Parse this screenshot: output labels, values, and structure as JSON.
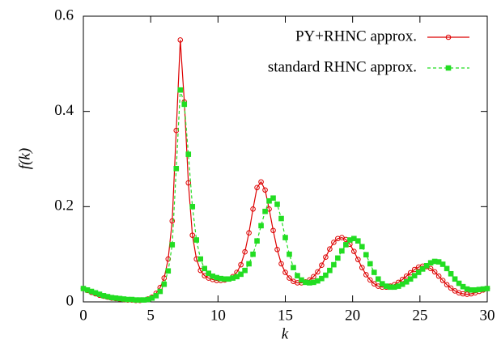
{
  "chart_data": {
    "type": "line",
    "x_label": "k",
    "y_label": "f(k)",
    "x": [
      0,
      0.3,
      0.6,
      0.9,
      1.2,
      1.5,
      1.8,
      2.1,
      2.4,
      2.7,
      3.0,
      3.3,
      3.6,
      3.9,
      4.2,
      4.5,
      4.8,
      5.1,
      5.4,
      5.7,
      6.0,
      6.3,
      6.6,
      6.9,
      7.2,
      7.5,
      7.8,
      8.1,
      8.4,
      8.7,
      9.0,
      9.3,
      9.6,
      9.9,
      10.2,
      10.5,
      10.8,
      11.1,
      11.4,
      11.7,
      12.0,
      12.3,
      12.6,
      12.9,
      13.2,
      13.5,
      13.8,
      14.1,
      14.4,
      14.7,
      15.0,
      15.3,
      15.6,
      15.9,
      16.2,
      16.5,
      16.8,
      17.1,
      17.4,
      17.7,
      18.0,
      18.3,
      18.6,
      18.9,
      19.2,
      19.5,
      19.8,
      20.1,
      20.4,
      20.7,
      21.0,
      21.3,
      21.6,
      21.9,
      22.2,
      22.5,
      22.8,
      23.1,
      23.4,
      23.7,
      24.0,
      24.3,
      24.6,
      24.9,
      25.2,
      25.5,
      25.8,
      26.1,
      26.4,
      26.7,
      27.0,
      27.3,
      27.6,
      27.9,
      28.2,
      28.5,
      28.8,
      29.1,
      29.4,
      29.7,
      30.0
    ],
    "series": [
      {
        "name": "PY+RHNC approx.",
        "color": "#dd0000",
        "marker": "circle",
        "dash": false,
        "values": [
          0.028,
          0.024,
          0.02,
          0.017,
          0.014,
          0.012,
          0.01,
          0.008,
          0.007,
          0.006,
          0.005,
          0.004,
          0.004,
          0.003,
          0.003,
          0.004,
          0.006,
          0.01,
          0.018,
          0.03,
          0.05,
          0.09,
          0.17,
          0.36,
          0.55,
          0.42,
          0.25,
          0.14,
          0.09,
          0.066,
          0.055,
          0.05,
          0.047,
          0.045,
          0.045,
          0.046,
          0.048,
          0.053,
          0.062,
          0.078,
          0.105,
          0.145,
          0.195,
          0.24,
          0.252,
          0.235,
          0.195,
          0.15,
          0.11,
          0.08,
          0.062,
          0.05,
          0.043,
          0.04,
          0.04,
          0.042,
          0.046,
          0.053,
          0.063,
          0.077,
          0.094,
          0.111,
          0.125,
          0.133,
          0.135,
          0.131,
          0.121,
          0.106,
          0.089,
          0.072,
          0.057,
          0.046,
          0.038,
          0.033,
          0.031,
          0.031,
          0.033,
          0.036,
          0.041,
          0.047,
          0.054,
          0.061,
          0.068,
          0.073,
          0.075,
          0.074,
          0.07,
          0.063,
          0.054,
          0.045,
          0.036,
          0.029,
          0.023,
          0.019,
          0.017,
          0.016,
          0.017,
          0.019,
          0.022,
          0.025,
          0.028
        ]
      },
      {
        "name": "standard RHNC approx.",
        "color": "#22dd22",
        "marker": "square",
        "dash": true,
        "values": [
          0.028,
          0.025,
          0.022,
          0.019,
          0.016,
          0.013,
          0.011,
          0.009,
          0.008,
          0.007,
          0.006,
          0.005,
          0.005,
          0.004,
          0.004,
          0.004,
          0.005,
          0.008,
          0.013,
          0.022,
          0.037,
          0.065,
          0.12,
          0.28,
          0.445,
          0.415,
          0.31,
          0.2,
          0.13,
          0.09,
          0.07,
          0.06,
          0.054,
          0.051,
          0.049,
          0.048,
          0.048,
          0.05,
          0.053,
          0.058,
          0.066,
          0.08,
          0.1,
          0.128,
          0.16,
          0.19,
          0.212,
          0.218,
          0.205,
          0.175,
          0.135,
          0.1,
          0.072,
          0.055,
          0.046,
          0.041,
          0.04,
          0.041,
          0.044,
          0.049,
          0.056,
          0.066,
          0.078,
          0.092,
          0.107,
          0.12,
          0.13,
          0.133,
          0.128,
          0.116,
          0.099,
          0.08,
          0.062,
          0.048,
          0.038,
          0.033,
          0.031,
          0.031,
          0.033,
          0.037,
          0.042,
          0.048,
          0.055,
          0.062,
          0.069,
          0.076,
          0.082,
          0.085,
          0.084,
          0.079,
          0.07,
          0.059,
          0.048,
          0.039,
          0.032,
          0.027,
          0.025,
          0.025,
          0.026,
          0.027,
          0.028
        ]
      }
    ],
    "xlim": [
      0,
      30
    ],
    "xticks": [
      0,
      5,
      10,
      15,
      20,
      25,
      30
    ],
    "ylim": [
      0,
      0.6
    ],
    "yticks": [
      0,
      0.2,
      0.4,
      0.6
    ],
    "legend": "upper right"
  }
}
